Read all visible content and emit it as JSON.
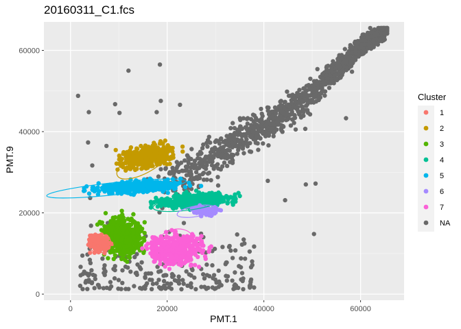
{
  "chart_data": {
    "type": "scatter",
    "title": "20160311_C1.fcs",
    "xlabel": "PMT.1",
    "ylabel": "PMT.9",
    "xlim": [
      -5500,
      69000
    ],
    "ylim": [
      -1500,
      67000
    ],
    "x_ticks": [
      0,
      20000,
      40000,
      60000
    ],
    "y_ticks": [
      0,
      20000,
      40000,
      60000
    ],
    "grid": true,
    "legend_title": "Cluster",
    "legend_position": "right",
    "series": [
      {
        "name": "1",
        "color": "#F8766D",
        "center": [
          6000,
          12500
        ],
        "spread": [
          3500,
          3500
        ]
      },
      {
        "name": "2",
        "color": "#C49A00",
        "center": [
          16000,
          34000
        ],
        "spread": [
          9000,
          4200
        ]
      },
      {
        "name": "3",
        "color": "#53B400",
        "center": [
          11000,
          14000
        ],
        "spread": [
          6500,
          8000
        ]
      },
      {
        "name": "4",
        "color": "#00C094",
        "center": [
          26000,
          23000
        ],
        "spread": [
          12000,
          2600
        ]
      },
      {
        "name": "5",
        "color": "#00B6EB",
        "center": [
          14000,
          26500
        ],
        "spread": [
          14000,
          2200
        ]
      },
      {
        "name": "6",
        "color": "#A58AFF",
        "center": [
          28000,
          20500
        ],
        "spread": [
          5000,
          1600
        ]
      },
      {
        "name": "7",
        "color": "#FB61D7",
        "center": [
          22000,
          11000
        ],
        "spread": [
          9000,
          6000
        ]
      },
      {
        "name": "NA",
        "color": "#696969"
      }
    ],
    "ellipses": [
      {
        "cluster": "1",
        "cx": 6000,
        "cy": 12500,
        "rx": 2400,
        "ry": 2300,
        "angle": 0
      },
      {
        "cluster": "2",
        "cx": 15000,
        "cy": 32500,
        "rx": 6000,
        "ry": 2800,
        "angle": 28
      },
      {
        "cluster": "3",
        "cx": 11500,
        "cy": 14000,
        "rx": 2700,
        "ry": 4800,
        "angle": 0
      },
      {
        "cluster": "4",
        "cx": 24500,
        "cy": 22500,
        "rx": 7500,
        "ry": 1800,
        "angle": 8
      },
      {
        "cluster": "5",
        "cx": 9500,
        "cy": 26000,
        "rx": 14500,
        "ry": 1500,
        "angle": 6
      },
      {
        "cluster": "6",
        "cx": 26000,
        "cy": 20400,
        "rx": 4000,
        "ry": 1300,
        "angle": 10
      },
      {
        "cluster": "7",
        "cx": 21500,
        "cy": 12000,
        "rx": 4200,
        "ry": 3800,
        "angle": 25
      }
    ],
    "na_trend": {
      "x": [
        20000,
        35000,
        45000,
        55000,
        61000,
        65500
      ],
      "y": [
        26000,
        38000,
        45000,
        55000,
        62000,
        65500
      ]
    }
  }
}
